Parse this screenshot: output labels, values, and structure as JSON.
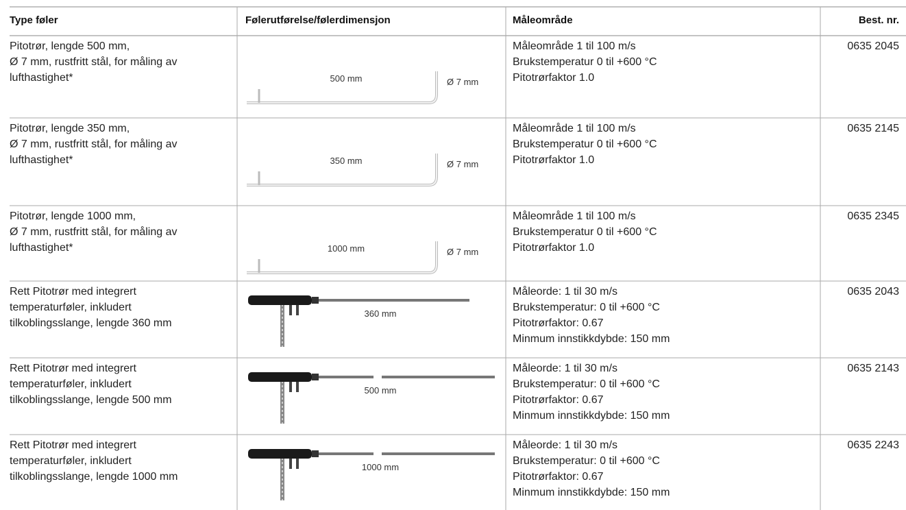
{
  "table": {
    "header": [
      "Type føler",
      "Følerutførelse/følerdimensjon",
      "Måleområde",
      "Best. nr."
    ],
    "rows": [
      {
        "type": [
          "Pitotrør, lengde 500 mm,",
          "Ø 7 mm, rustfritt stål, for måling av",
          "lufthastighet*"
        ],
        "length_label": "500 mm",
        "diameter_label": "Ø 7 mm",
        "range": [
          "Måleområde 1 til 100 m/s",
          "Brukstemperatur 0 til +600 °C",
          "Pitotrørfaktor 1.0"
        ],
        "order_number": "0635 2045"
      },
      {
        "type": [
          "Pitotrør, lengde 350 mm,",
          "Ø 7 mm, rustfritt stål, for måling av",
          "lufthastighet*"
        ],
        "length_label": "350 mm",
        "diameter_label": "Ø 7 mm",
        "range": [
          "Måleområde 1 til 100 m/s",
          "Brukstemperatur 0 til +600 °C",
          "Pitotrørfaktor 1.0"
        ],
        "order_number": "0635 2145"
      },
      {
        "type": [
          "Pitotrør, lengde 1000 mm,",
          "Ø 7 mm, rustfritt stål, for måling av",
          "lufthastighet*"
        ],
        "length_label": "1000 mm",
        "diameter_label": "Ø 7 mm",
        "range": [
          "Måleområde 1 til 100 m/s",
          "Brukstemperatur 0 til +600 °C",
          "Pitotrørfaktor 1.0"
        ],
        "order_number": "0635 2345"
      },
      {
        "type": [
          "Rett Pitotrør med integrert",
          "temperaturføler, inkludert",
          "tilkoblingsslange, lengde 360 mm"
        ],
        "length_label": "360 mm",
        "range": [
          "Måleorde: 1 til 30 m/s",
          "Brukstemperatur: 0 til +600 °C",
          "Pitotrørfaktor: 0.67",
          "Minmum innstikkdybde: 150 mm"
        ],
        "order_number": "0635 2043"
      },
      {
        "type": [
          "Rett Pitotrør med integrert",
          "temperaturføler, inkludert",
          "tilkoblingsslange, lengde 500 mm"
        ],
        "length_label": "500 mm",
        "range": [
          "Måleorde: 1 til 30 m/s",
          "Brukstemperatur: 0 til +600 °C",
          "Pitotrørfaktor: 0.67",
          "Minmum innstikkdybde: 150 mm"
        ],
        "order_number": "0635 2143"
      },
      {
        "type": [
          "Rett Pitotrør med integrert",
          "temperaturføler, inkludert",
          "tilkoblingsslange, lengde 1000 mm"
        ],
        "length_label": "1000 mm",
        "range": [
          "Måleorde: 1 til 30 m/s",
          "Brukstemperatur: 0 til +600 °C",
          "Pitotrørfaktor: 0.67",
          "Minmum innstikkdybde: 150 mm"
        ],
        "order_number": "0635 2243"
      }
    ]
  }
}
